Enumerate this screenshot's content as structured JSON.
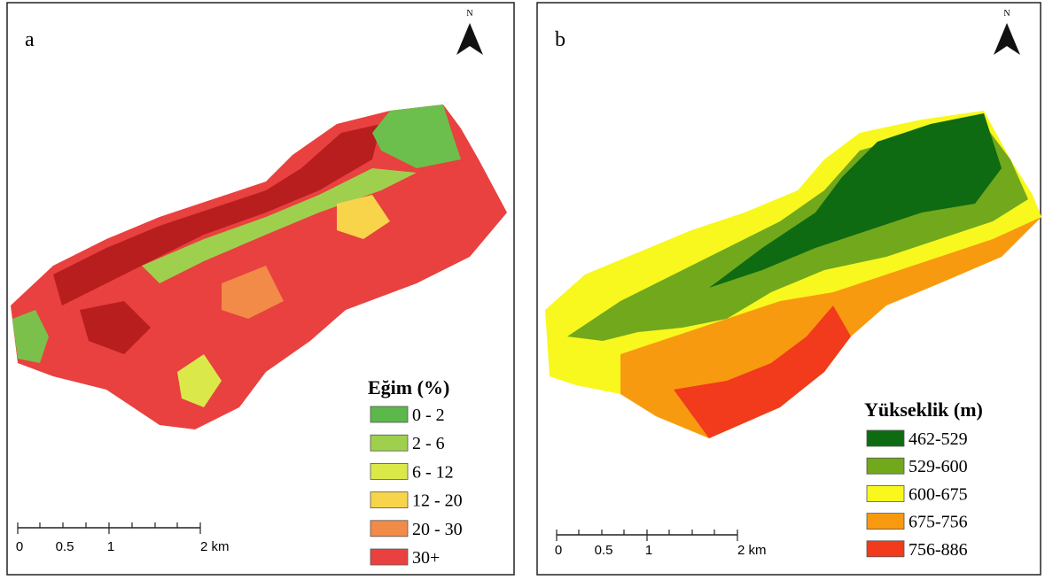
{
  "panels": [
    {
      "label": "a",
      "north": "N",
      "legend": {
        "title": "Eğim (%)",
        "items": [
          {
            "label": "0 - 2",
            "color": "#5cb84a"
          },
          {
            "label": "2 - 6",
            "color": "#9ed04e"
          },
          {
            "label": "6 - 12",
            "color": "#dbe84a"
          },
          {
            "label": "12 - 20",
            "color": "#f8d44a"
          },
          {
            "label": "20 - 30",
            "color": "#f28a48"
          },
          {
            "label": "30+",
            "color": "#e8413f"
          }
        ]
      },
      "scale": {
        "labels": [
          "0",
          "0.5",
          "1",
          "2 km"
        ]
      }
    },
    {
      "label": "b",
      "north": "N",
      "legend": {
        "title": "Yükseklik (m)",
        "items": [
          {
            "label": "462-529",
            "color": "#0e6b12"
          },
          {
            "label": "529-600",
            "color": "#72a81c"
          },
          {
            "label": "600-675",
            "color": "#f8f81e"
          },
          {
            "label": "675-756",
            "color": "#f89a10"
          },
          {
            "label": "756-886",
            "color": "#f23a1c"
          }
        ]
      },
      "scale": {
        "labels": [
          "0",
          "0.5",
          "1",
          "2 km"
        ]
      }
    }
  ]
}
